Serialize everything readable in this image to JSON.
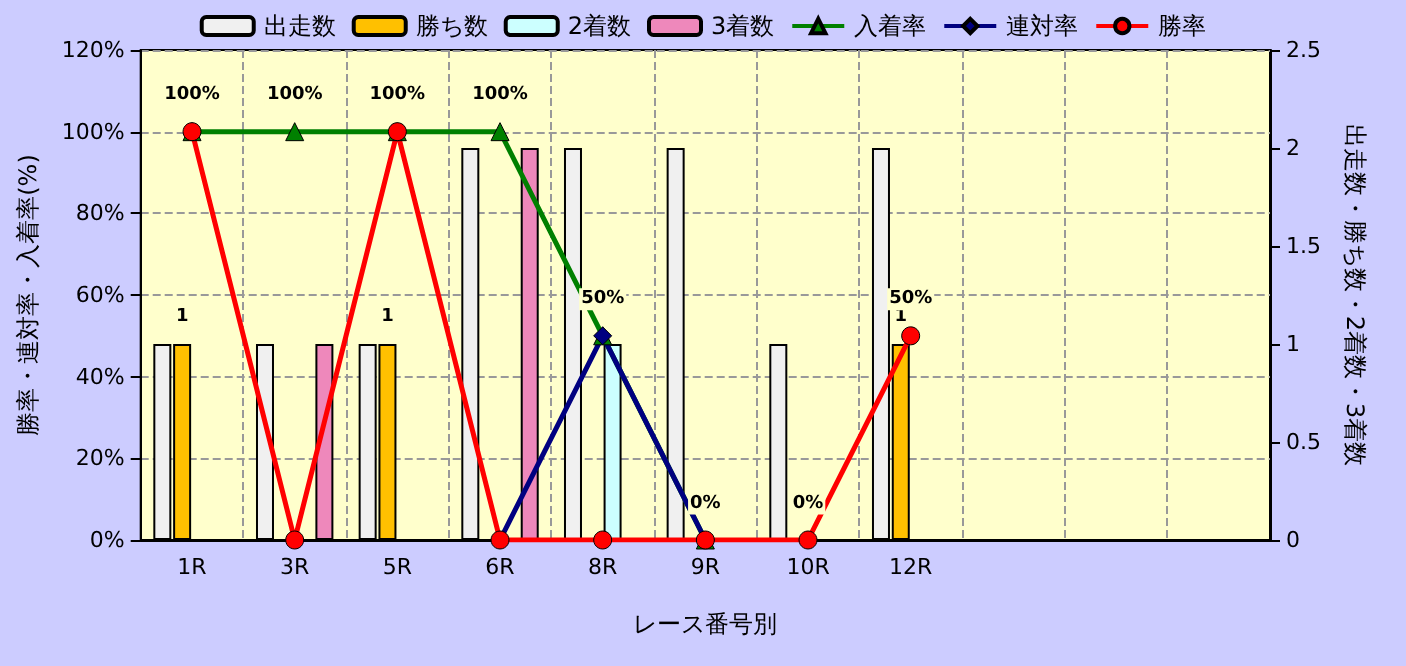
{
  "chart_data": {
    "type": "bar",
    "categories": [
      "1R",
      "3R",
      "5R",
      "6R",
      "8R",
      "9R",
      "10R",
      "12R",
      null,
      null,
      null
    ],
    "xlabel": "レース番号別",
    "ylabel": "勝率・連対率・入着率(%)",
    "y2label": "出走数・勝ち数・2着数・3着数",
    "series": [
      {
        "name": "出走数",
        "axis": "y2",
        "color": "#f0f0f0",
        "values": [
          1,
          1,
          1,
          2,
          2,
          2,
          1,
          2,
          null,
          null,
          null
        ]
      },
      {
        "name": "勝ち数",
        "axis": "y2",
        "color": "#ffc000",
        "values": [
          1,
          null,
          1,
          null,
          null,
          null,
          null,
          1,
          null,
          null,
          null
        ],
        "value_labels": [
          "1",
          null,
          "1",
          null,
          null,
          null,
          null,
          "1",
          null,
          null,
          null
        ]
      },
      {
        "name": "2着数",
        "axis": "y2",
        "color": "#ccffff",
        "values": [
          null,
          null,
          null,
          null,
          1,
          null,
          null,
          null,
          null,
          null,
          null
        ]
      },
      {
        "name": "3着数",
        "axis": "y2",
        "color": "#ee88bb",
        "values": [
          null,
          1,
          null,
          2,
          null,
          null,
          null,
          null,
          null,
          null,
          null
        ]
      },
      {
        "name": "入着率",
        "type": "line",
        "color": "#008000",
        "marker": "triangle",
        "values": [
          100,
          100,
          100,
          100,
          50,
          0,
          null,
          null,
          null,
          null,
          null
        ],
        "value_labels": [
          "100%",
          "100%",
          "100%",
          "100%",
          "50%",
          "0%",
          null,
          null,
          null,
          null,
          null
        ]
      },
      {
        "name": "連対率",
        "type": "line",
        "color": "#000080",
        "marker": "diamond",
        "values": [
          null,
          null,
          null,
          0,
          50,
          0,
          null,
          null,
          null,
          null,
          null
        ]
      },
      {
        "name": "勝率",
        "type": "line",
        "color": "#ff0000",
        "marker": "circle",
        "values": [
          100,
          0,
          100,
          0,
          0,
          0,
          0,
          50,
          null,
          null,
          null
        ],
        "value_labels": [
          null,
          null,
          null,
          null,
          null,
          null,
          "0%",
          "50%",
          null,
          null,
          null
        ]
      }
    ],
    "ylim": [
      0,
      120
    ],
    "yticks": [
      {
        "value": 0,
        "label": "0%"
      },
      {
        "value": 20,
        "label": "20%"
      },
      {
        "value": 40,
        "label": "40%"
      },
      {
        "value": 60,
        "label": "60%"
      },
      {
        "value": 80,
        "label": "80%"
      },
      {
        "value": 100,
        "label": "100%"
      },
      {
        "value": 120,
        "label": "120%"
      }
    ],
    "y2lim": [
      0,
      2.5
    ],
    "y2ticks": [
      0,
      0.5,
      1,
      1.5,
      2,
      2.5
    ],
    "grid": true,
    "legend": "top"
  }
}
